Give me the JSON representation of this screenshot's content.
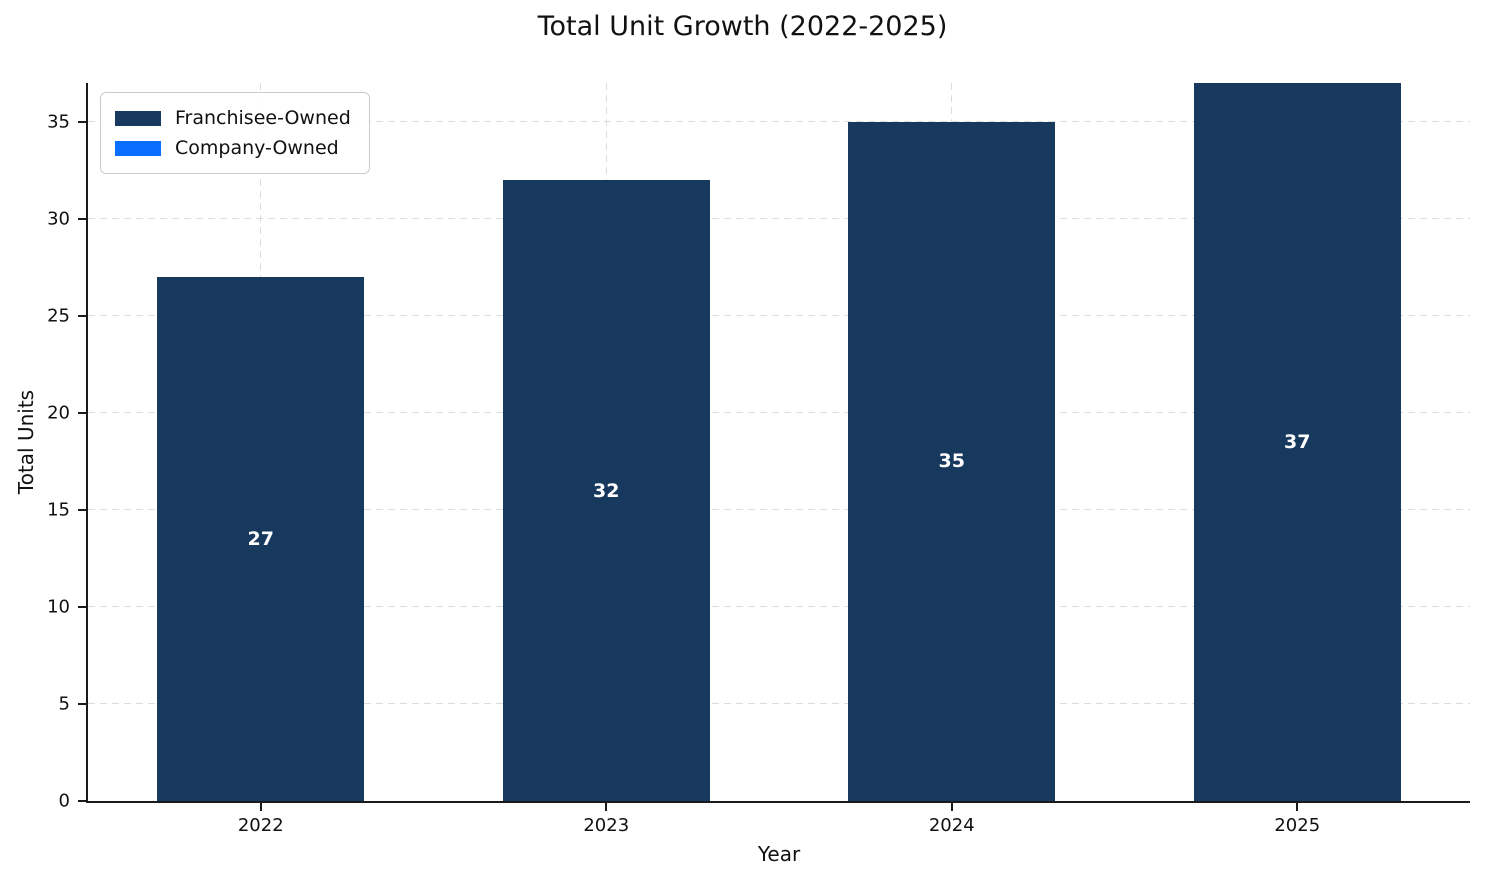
{
  "chart_data": {
    "type": "bar",
    "stacked": true,
    "title": "Total Unit Growth (2022-2025)",
    "xlabel": "Year",
    "ylabel": "Total Units",
    "categories": [
      "2022",
      "2023",
      "2024",
      "2025"
    ],
    "series": [
      {
        "name": "Franchisee-Owned",
        "color": "#17395d",
        "values": [
          27,
          32,
          35,
          37
        ]
      },
      {
        "name": "Company-Owned",
        "color": "#0a6eff",
        "values": [
          0,
          0,
          0,
          0
        ]
      }
    ],
    "bar_labels": [
      "27",
      "32",
      "35",
      "37"
    ],
    "y_ticks": [
      0,
      5,
      10,
      15,
      20,
      25,
      30,
      35
    ],
    "ylim": [
      0,
      37
    ],
    "bar_width_fraction": 0.6,
    "grid": "dashed",
    "legend_position": "upper-left"
  }
}
